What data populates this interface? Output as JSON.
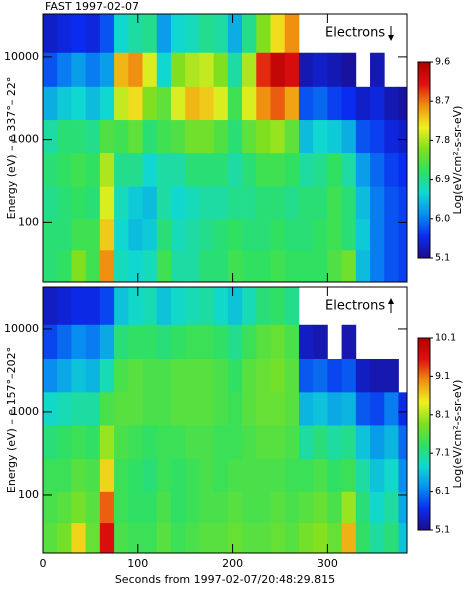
{
  "chart_data": [
    {
      "type": "heatmap",
      "title": "FAST 1997-02-07",
      "ylabel": "Energy (eV) – e 337°– 22°",
      "annotation": "Electrons",
      "arrow": "down",
      "x_bins": [
        0,
        15,
        30,
        45,
        60,
        75,
        90,
        105,
        120,
        135,
        150,
        165,
        180,
        195,
        210,
        225,
        240,
        255,
        270,
        285,
        300,
        315,
        330,
        345,
        360,
        375,
        390
      ],
      "y": [
        18000,
        7000,
        2700,
        1100,
        430,
        170,
        70,
        30
      ],
      "z": [
        [
          5.4,
          5.5,
          5.6,
          5.5,
          5.8,
          6.6,
          6.8,
          6.9,
          6.2,
          6.6,
          6.7,
          6.9,
          6.8,
          6.3,
          6.9,
          7.6,
          8.2,
          8.6,
          null,
          null,
          null,
          null,
          null,
          null,
          null,
          null
        ],
        [
          5.8,
          6.0,
          6.2,
          6.0,
          6.2,
          8.4,
          8.6,
          8.0,
          6.6,
          7.6,
          7.8,
          7.9,
          7.6,
          6.8,
          7.8,
          9.0,
          9.4,
          9.2,
          5.3,
          5.4,
          5.3,
          5.2,
          null,
          5.3,
          null,
          null
        ],
        [
          6.3,
          6.5,
          6.6,
          6.4,
          6.6,
          7.9,
          8.2,
          7.6,
          7.4,
          8.0,
          8.4,
          8.3,
          8.0,
          7.2,
          8.0,
          8.6,
          8.8,
          8.5,
          5.8,
          5.9,
          5.7,
          5.6,
          5.4,
          5.5,
          5.3,
          5.2
        ],
        [
          6.8,
          7.0,
          7.0,
          6.9,
          7.3,
          7.2,
          7.4,
          7.0,
          7.2,
          7.3,
          7.5,
          7.5,
          7.3,
          7.0,
          7.4,
          7.6,
          7.7,
          7.4,
          6.4,
          6.6,
          6.5,
          6.3,
          5.8,
          5.7,
          5.5,
          5.4
        ],
        [
          7.0,
          7.1,
          7.2,
          7.1,
          7.8,
          6.9,
          6.9,
          6.6,
          6.8,
          6.8,
          7.0,
          7.0,
          7.0,
          6.8,
          7.0,
          7.2,
          7.2,
          7.1,
          6.8,
          6.9,
          7.1,
          6.8,
          6.2,
          5.9,
          5.7,
          5.6
        ],
        [
          6.9,
          7.0,
          7.1,
          7.0,
          8.0,
          6.7,
          6.5,
          6.4,
          6.8,
          6.6,
          6.7,
          6.8,
          6.8,
          6.9,
          6.9,
          7.0,
          7.0,
          6.9,
          7.0,
          7.0,
          7.2,
          7.0,
          6.4,
          6.0,
          5.8,
          5.7
        ],
        [
          7.0,
          7.0,
          7.2,
          7.2,
          8.3,
          6.6,
          6.4,
          6.5,
          7.0,
          6.7,
          6.8,
          6.9,
          7.0,
          7.1,
          7.0,
          7.0,
          7.1,
          7.0,
          7.0,
          7.1,
          7.2,
          7.0,
          6.5,
          6.0,
          5.8,
          5.7
        ],
        [
          7.0,
          7.1,
          7.6,
          7.2,
          8.6,
          6.7,
          6.6,
          6.7,
          7.2,
          6.8,
          6.8,
          7.0,
          7.0,
          7.2,
          7.1,
          7.1,
          7.2,
          7.1,
          7.1,
          7.1,
          7.3,
          7.5,
          6.4,
          6.0,
          5.8,
          5.7
        ]
      ],
      "xlim": [
        0,
        384
      ],
      "xticks": [
        0,
        100,
        200,
        300
      ],
      "show_xtick_labels": false,
      "ylim": [
        19,
        33000
      ],
      "yticks": [
        100,
        1000,
        10000
      ],
      "log_y": true,
      "clim": [
        5.1,
        9.6
      ],
      "cticks": [
        5.1,
        {
          "value": 6,
          "label": "6.0"
        },
        6.9,
        7.8,
        8.7,
        9.6
      ],
      "clabel": "Log(eV/cm²-s-sr-eV)",
      "colormap": [
        "#1c0c8c",
        "#0a2cf0",
        "#0890f0",
        "#10d8d0",
        "#30e060",
        "#80e020",
        "#f0f020",
        "#f09010",
        "#e01010",
        "#b00000"
      ]
    },
    {
      "type": "heatmap",
      "ylabel": "Energy (eV) – e 157°–202°",
      "annotation": "Electrons",
      "arrow": "up",
      "xlabel": "Seconds from 1997-02-07/20:48:29.815",
      "x_bins": [
        0,
        15,
        30,
        45,
        60,
        75,
        90,
        105,
        120,
        135,
        150,
        165,
        180,
        195,
        210,
        225,
        240,
        255,
        270,
        285,
        300,
        315,
        330,
        345,
        360,
        375,
        390
      ],
      "y": [
        18000,
        7000,
        2700,
        1100,
        430,
        170,
        70,
        30
      ],
      "z": [
        [
          5.4,
          5.5,
          5.6,
          5.6,
          5.8,
          6.6,
          6.8,
          6.9,
          6.6,
          6.8,
          6.9,
          7.0,
          6.8,
          6.6,
          6.9,
          7.2,
          7.3,
          7.1,
          null,
          null,
          null,
          null,
          null,
          null,
          null,
          null
        ],
        [
          5.8,
          6.0,
          6.2,
          6.1,
          6.4,
          7.2,
          7.3,
          7.3,
          7.2,
          7.3,
          7.4,
          7.4,
          7.3,
          7.1,
          7.4,
          7.6,
          7.7,
          7.5,
          5.4,
          5.3,
          null,
          5.3,
          null,
          null,
          null,
          null
        ],
        [
          6.2,
          6.4,
          6.6,
          6.5,
          6.9,
          7.5,
          7.6,
          7.5,
          7.5,
          7.6,
          7.6,
          7.6,
          7.5,
          7.3,
          7.6,
          7.7,
          7.8,
          7.6,
          5.9,
          6.0,
          5.8,
          5.9,
          5.4,
          5.3,
          5.3,
          null
        ],
        [
          6.8,
          6.9,
          7.0,
          7.0,
          7.5,
          7.6,
          7.6,
          7.5,
          7.5,
          7.6,
          7.6,
          7.6,
          7.5,
          7.4,
          7.6,
          7.7,
          7.7,
          7.6,
          6.5,
          6.6,
          6.4,
          6.5,
          5.9,
          5.8,
          6.1,
          5.6
        ],
        [
          7.2,
          7.3,
          7.4,
          7.3,
          8.0,
          7.5,
          7.4,
          7.3,
          7.4,
          7.4,
          7.5,
          7.5,
          7.4,
          7.4,
          7.5,
          7.6,
          7.6,
          7.5,
          7.0,
          7.2,
          7.0,
          7.1,
          6.6,
          6.3,
          6.5,
          6.0
        ],
        [
          7.4,
          7.4,
          7.6,
          7.5,
          8.6,
          7.4,
          7.3,
          7.2,
          7.4,
          7.3,
          7.4,
          7.5,
          7.4,
          7.5,
          7.5,
          7.5,
          7.5,
          7.4,
          7.4,
          7.5,
          7.3,
          7.4,
          7.0,
          6.6,
          6.8,
          6.2
        ],
        [
          7.5,
          7.6,
          7.8,
          7.6,
          9.2,
          7.4,
          7.3,
          7.3,
          7.5,
          7.3,
          7.4,
          7.5,
          7.5,
          7.6,
          7.5,
          7.5,
          7.6,
          7.5,
          7.6,
          7.7,
          7.5,
          8.0,
          7.2,
          6.8,
          7.0,
          6.4
        ],
        [
          7.6,
          7.8,
          8.6,
          7.7,
          9.6,
          7.5,
          7.4,
          7.4,
          7.6,
          7.4,
          7.5,
          7.6,
          7.6,
          7.7,
          7.6,
          7.6,
          7.7,
          7.6,
          7.8,
          7.9,
          7.7,
          8.8,
          7.3,
          7.0,
          7.2,
          6.6
        ]
      ],
      "xlim": [
        0,
        384
      ],
      "xticks": [
        0,
        100,
        200,
        300
      ],
      "show_xtick_labels": true,
      "ylim": [
        20,
        32000
      ],
      "yticks": [
        100,
        1000,
        10000
      ],
      "log_y": true,
      "clim": [
        5.1,
        10.1
      ],
      "cticks": [
        5.1,
        6.1,
        7.1,
        8.1,
        9.1,
        10.1
      ],
      "clabel": "Log(eV/cm²-s-sr-eV)",
      "colormap": [
        "#1c0c8c",
        "#0a2cf0",
        "#0890f0",
        "#10d8d0",
        "#30e060",
        "#80e020",
        "#f0f020",
        "#f09010",
        "#e01010",
        "#b00000"
      ]
    }
  ]
}
